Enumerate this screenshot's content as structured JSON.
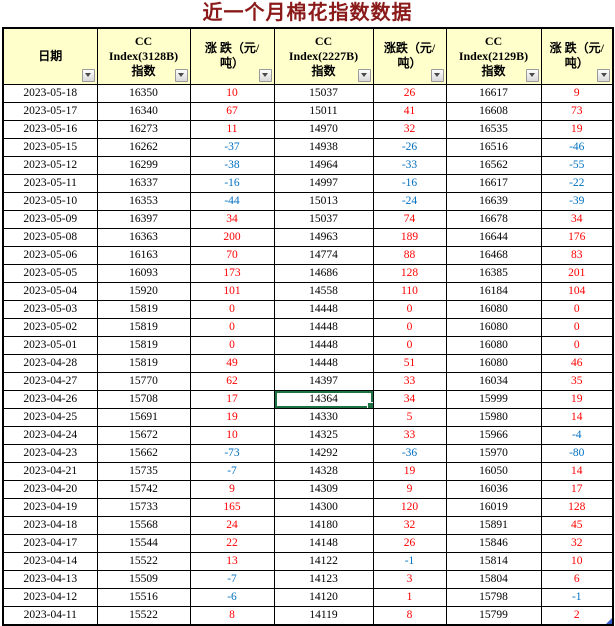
{
  "title": "近一个月棉花指数数据",
  "columns": [
    {
      "name": "date",
      "label": "日期"
    },
    {
      "name": "index-3128b",
      "label": "CC\nIndex(3128B)\n指数"
    },
    {
      "name": "change-3128b",
      "label": "涨 跌（元/\n吨）"
    },
    {
      "name": "index-2227b",
      "label": "CC\nIndex(2227B)\n指数"
    },
    {
      "name": "change-2227b",
      "label": "涨跌（元/\n吨）"
    },
    {
      "name": "index-2129b",
      "label": "CC\nIndex(2129B)\n指数"
    },
    {
      "name": "change-2129b",
      "label": "涨 跌（元/\n吨）"
    }
  ],
  "rows": [
    [
      "2023-05-18",
      16350,
      10,
      15037,
      26,
      16617,
      9
    ],
    [
      "2023-05-17",
      16340,
      67,
      15011,
      41,
      16608,
      73
    ],
    [
      "2023-05-16",
      16273,
      11,
      14970,
      32,
      16535,
      19
    ],
    [
      "2023-05-15",
      16262,
      -37,
      14938,
      -26,
      16516,
      -46
    ],
    [
      "2023-05-12",
      16299,
      -38,
      14964,
      -33,
      16562,
      -55
    ],
    [
      "2023-05-11",
      16337,
      -16,
      14997,
      -16,
      16617,
      -22
    ],
    [
      "2023-05-10",
      16353,
      -44,
      15013,
      -24,
      16639,
      -39
    ],
    [
      "2023-05-09",
      16397,
      34,
      15037,
      74,
      16678,
      34
    ],
    [
      "2023-05-08",
      16363,
      200,
      14963,
      189,
      16644,
      176
    ],
    [
      "2023-05-06",
      16163,
      70,
      14774,
      88,
      16468,
      83
    ],
    [
      "2023-05-05",
      16093,
      173,
      14686,
      128,
      16385,
      201
    ],
    [
      "2023-05-04",
      15920,
      101,
      14558,
      110,
      16184,
      104
    ],
    [
      "2023-05-03",
      15819,
      0,
      14448,
      0,
      16080,
      0
    ],
    [
      "2023-05-02",
      15819,
      0,
      14448,
      0,
      16080,
      0
    ],
    [
      "2023-05-01",
      15819,
      0,
      14448,
      0,
      16080,
      0
    ],
    [
      "2023-04-28",
      15819,
      49,
      14448,
      51,
      16080,
      46
    ],
    [
      "2023-04-27",
      15770,
      62,
      14397,
      33,
      16034,
      35
    ],
    [
      "2023-04-26",
      15708,
      17,
      14364,
      34,
      15999,
      19
    ],
    [
      "2023-04-25",
      15691,
      19,
      14330,
      5,
      15980,
      14
    ],
    [
      "2023-04-24",
      15672,
      10,
      14325,
      33,
      15966,
      -4
    ],
    [
      "2023-04-23",
      15662,
      -73,
      14292,
      -36,
      15970,
      -80
    ],
    [
      "2023-04-21",
      15735,
      -7,
      14328,
      19,
      16050,
      14
    ],
    [
      "2023-04-20",
      15742,
      9,
      14309,
      9,
      16036,
      17
    ],
    [
      "2023-04-19",
      15733,
      165,
      14300,
      120,
      16019,
      128
    ],
    [
      "2023-04-18",
      15568,
      24,
      14180,
      32,
      15891,
      45
    ],
    [
      "2023-04-17",
      15544,
      22,
      14148,
      26,
      15846,
      32
    ],
    [
      "2023-04-14",
      15522,
      13,
      14122,
      -1,
      15814,
      10
    ],
    [
      "2023-04-13",
      15509,
      -7,
      14123,
      3,
      15804,
      6
    ],
    [
      "2023-04-12",
      15516,
      -6,
      14120,
      1,
      15798,
      -1
    ],
    [
      "2023-04-11",
      15522,
      8,
      14119,
      8,
      15799,
      2
    ]
  ],
  "selection": {
    "row_index": 17,
    "col_index": 3,
    "value": 14364,
    "date": "2023-04-26"
  },
  "colors": {
    "positive": "#FF0000",
    "negative": "#0070C0",
    "header_bg": "#FFFFCC",
    "title": "#8B1A1A",
    "selection": "#1F7244",
    "grid_line": "#000000"
  }
}
